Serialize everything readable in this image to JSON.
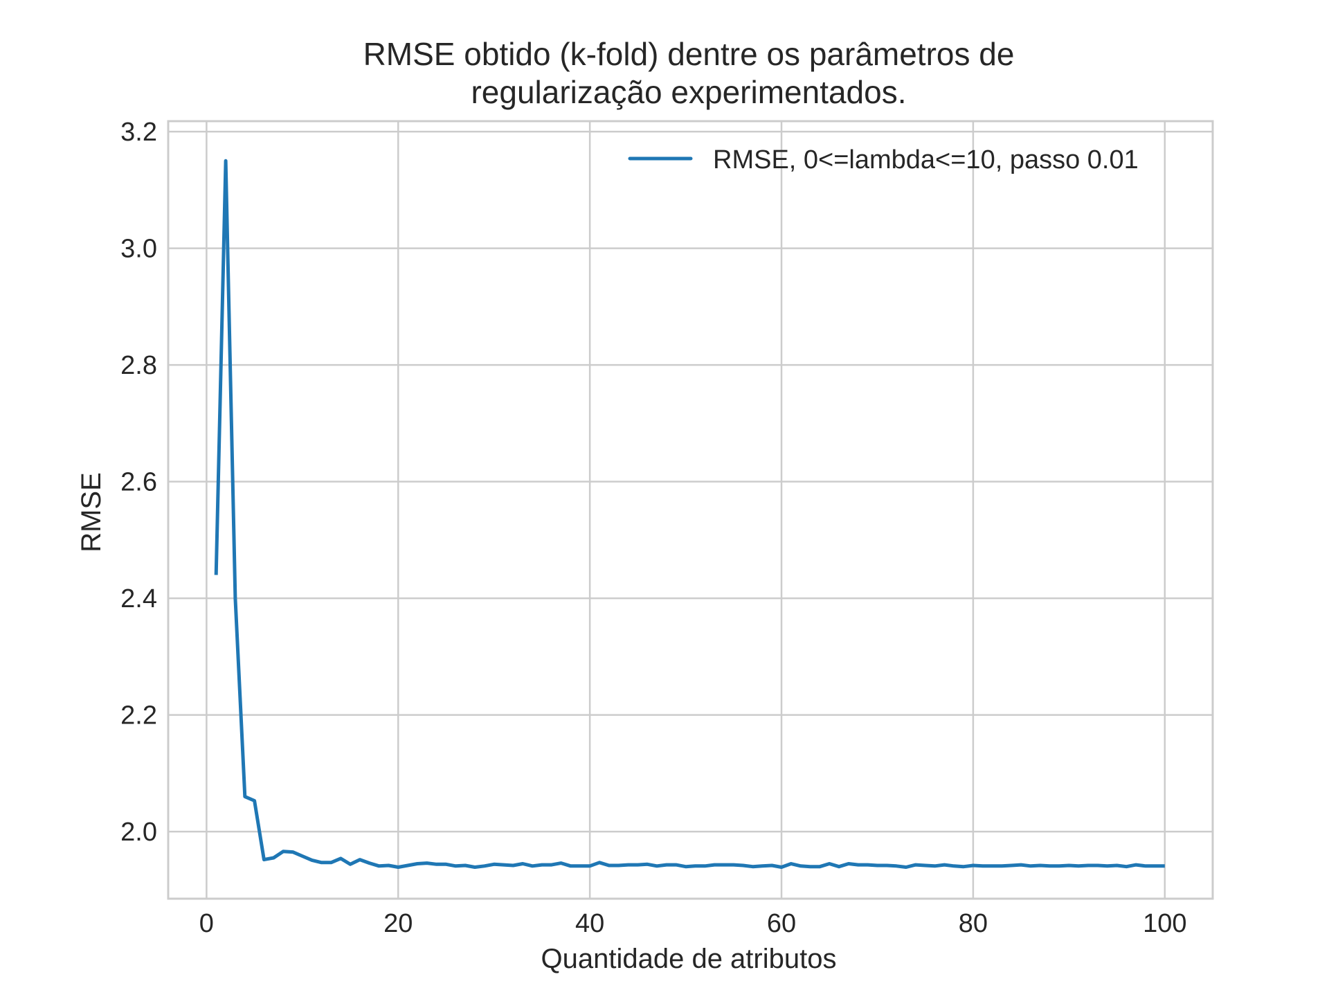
{
  "chart_data": {
    "type": "line",
    "title_line1": "RMSE obtido (k-fold) dentre os parâmetros de",
    "title_line2": "regularização experimentados.",
    "xlabel": "Quantidade de atributos",
    "ylabel": "RMSE",
    "xlim": [
      -4,
      105
    ],
    "ylim": [
      1.885,
      3.218
    ],
    "xticks": [
      0,
      20,
      40,
      60,
      80,
      100
    ],
    "xtick_labels": [
      "0",
      "20",
      "40",
      "60",
      "80",
      "100"
    ],
    "yticks": [
      2.0,
      2.2,
      2.4,
      2.6,
      2.8,
      3.0,
      3.2
    ],
    "ytick_labels": [
      "2.0",
      "2.2",
      "2.4",
      "2.6",
      "2.8",
      "3.0",
      "3.2"
    ],
    "grid": true,
    "legend_position": "top-right",
    "series": [
      {
        "name": "RMSE, 0<=lambda<=10, passo 0.01",
        "color": "#1f77b4",
        "x": [
          1,
          2,
          3,
          4,
          5,
          6,
          7,
          8,
          9,
          10,
          11,
          12,
          13,
          14,
          15,
          16,
          17,
          18,
          19,
          20,
          21,
          22,
          23,
          24,
          25,
          26,
          27,
          28,
          29,
          30,
          31,
          32,
          33,
          34,
          35,
          36,
          37,
          38,
          39,
          40,
          41,
          42,
          43,
          44,
          45,
          46,
          47,
          48,
          49,
          50,
          51,
          52,
          53,
          54,
          55,
          56,
          57,
          58,
          59,
          60,
          61,
          62,
          63,
          64,
          65,
          66,
          67,
          68,
          69,
          70,
          71,
          72,
          73,
          74,
          75,
          76,
          77,
          78,
          79,
          80,
          81,
          82,
          83,
          84,
          85,
          86,
          87,
          88,
          89,
          90,
          91,
          92,
          93,
          94,
          95,
          96,
          97,
          98,
          99,
          100
        ],
        "y": [
          2.44,
          3.15,
          2.4,
          2.06,
          2.053,
          1.952,
          1.955,
          1.966,
          1.965,
          1.958,
          1.951,
          1.947,
          1.947,
          1.954,
          1.944,
          1.952,
          1.946,
          1.941,
          1.942,
          1.939,
          1.942,
          1.945,
          1.946,
          1.944,
          1.944,
          1.941,
          1.942,
          1.939,
          1.941,
          1.944,
          1.943,
          1.942,
          1.945,
          1.941,
          1.943,
          1.943,
          1.946,
          1.941,
          1.941,
          1.941,
          1.947,
          1.942,
          1.942,
          1.943,
          1.943,
          1.944,
          1.941,
          1.943,
          1.943,
          1.94,
          1.941,
          1.941,
          1.943,
          1.943,
          1.943,
          1.942,
          1.94,
          1.941,
          1.942,
          1.939,
          1.945,
          1.941,
          1.94,
          1.94,
          1.945,
          1.94,
          1.945,
          1.943,
          1.943,
          1.942,
          1.942,
          1.941,
          1.939,
          1.943,
          1.942,
          1.941,
          1.943,
          1.941,
          1.94,
          1.942,
          1.941,
          1.941,
          1.941,
          1.942,
          1.943,
          1.941,
          1.942,
          1.941,
          1.941,
          1.942,
          1.941,
          1.942,
          1.942,
          1.941,
          1.942,
          1.94,
          1.943,
          1.941,
          1.941,
          1.941
        ]
      }
    ]
  }
}
